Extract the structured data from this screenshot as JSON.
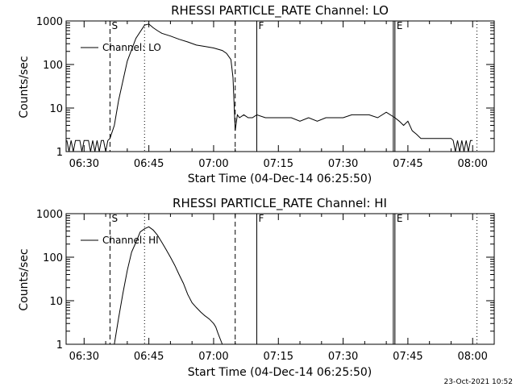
{
  "chart_data": [
    {
      "type": "line",
      "title": "RHESSI PARTICLE_RATE Channel: LO",
      "xlabel": "Start Time (04-Dec-14 06:25:50)",
      "ylabel": "Counts/sec",
      "yscale": "log",
      "ylim": [
        1,
        1000
      ],
      "xlim": [
        "06:25:50",
        "08:05:00"
      ],
      "x_ticks": [
        "06:30",
        "06:45",
        "07:00",
        "07:15",
        "07:30",
        "07:45",
        "08:00"
      ],
      "y_ticks": [
        "1",
        "10",
        "100",
        "1000"
      ],
      "legend": {
        "entries": [
          "Channel: LO"
        ],
        "placement": "top-left"
      },
      "markers": [
        {
          "label": "S",
          "time": "06:36:00",
          "style": "dashed"
        },
        {
          "label": "",
          "time": "06:44:00",
          "style": "dotted"
        },
        {
          "label": "",
          "time": "07:05:00",
          "style": "dashed"
        },
        {
          "label": "F",
          "time": "07:10:00",
          "style": "solid"
        },
        {
          "label": "E",
          "time": "07:42:00",
          "style": "solid"
        },
        {
          "label": "",
          "time": "08:01:00",
          "style": "dotted"
        }
      ],
      "series": [
        {
          "name": "Channel: LO",
          "x": [
            "06:26:00",
            "06:26:30",
            "06:27:00",
            "06:27:30",
            "06:28:00",
            "06:28:30",
            "06:29:00",
            "06:29:30",
            "06:30:00",
            "06:30:30",
            "06:31:00",
            "06:31:30",
            "06:32:00",
            "06:32:30",
            "06:33:00",
            "06:33:30",
            "06:34:00",
            "06:34:30",
            "06:35:00",
            "06:35:30",
            "06:36:00",
            "06:37:00",
            "06:38:00",
            "06:40:00",
            "06:42:00",
            "06:44:00",
            "06:45:00",
            "06:46:00",
            "06:47:00",
            "06:48:00",
            "06:50:00",
            "06:52:00",
            "06:54:00",
            "06:56:00",
            "06:58:00",
            "07:00:00",
            "07:02:00",
            "07:03:00",
            "07:04:00",
            "07:04:30",
            "07:05:00",
            "07:05:30",
            "07:06:00",
            "07:07:00",
            "07:08:00",
            "07:09:00",
            "07:10:00",
            "07:12:00",
            "07:14:00",
            "07:16:00",
            "07:18:00",
            "07:20:00",
            "07:22:00",
            "07:24:00",
            "07:26:00",
            "07:28:00",
            "07:30:00",
            "07:32:00",
            "07:34:00",
            "07:36:00",
            "07:38:00",
            "07:40:00",
            "07:42:00",
            "07:43:00",
            "07:44:00",
            "07:45:00",
            "07:46:00",
            "07:47:00",
            "07:48:00",
            "07:50:00",
            "07:52:00",
            "07:54:00",
            "07:55:00",
            "07:55:30",
            "07:56:00",
            "07:56:30",
            "07:57:00",
            "07:57:30",
            "07:58:00",
            "07:58:30",
            "07:59:00",
            "07:59:30",
            "08:00:00"
          ],
          "values": [
            1.8,
            1,
            1.8,
            1,
            1.8,
            1.8,
            1.8,
            1,
            1.8,
            1.8,
            1.8,
            1,
            1.8,
            1,
            1.8,
            1,
            1.8,
            1.8,
            1,
            1.8,
            2,
            4,
            15,
            120,
            400,
            800,
            850,
            700,
            600,
            520,
            450,
            380,
            330,
            280,
            260,
            240,
            210,
            180,
            130,
            50,
            3,
            7,
            6,
            7,
            6,
            6,
            7,
            6,
            6,
            6,
            6,
            5,
            6,
            5,
            6,
            6,
            6,
            7,
            7,
            7,
            6,
            8,
            6,
            5,
            4,
            5,
            3,
            2.5,
            2,
            2,
            2,
            2,
            2,
            1.8,
            1,
            1.8,
            1,
            1.8,
            1,
            1.8,
            1,
            1.8,
            1.8
          ]
        }
      ]
    },
    {
      "type": "line",
      "title": "RHESSI PARTICLE_RATE Channel: HI",
      "xlabel": "Start Time (04-Dec-14 06:25:50)",
      "ylabel": "Counts/sec",
      "yscale": "log",
      "ylim": [
        1,
        1000
      ],
      "xlim": [
        "06:25:50",
        "08:05:00"
      ],
      "x_ticks": [
        "06:30",
        "06:45",
        "07:00",
        "07:15",
        "07:30",
        "07:45",
        "08:00"
      ],
      "y_ticks": [
        "1",
        "10",
        "100",
        "1000"
      ],
      "legend": {
        "entries": [
          "Channel: HI"
        ],
        "placement": "top-left"
      },
      "markers": [
        {
          "label": "S",
          "time": "06:36:00",
          "style": "dashed"
        },
        {
          "label": "",
          "time": "06:44:00",
          "style": "dotted"
        },
        {
          "label": "",
          "time": "07:05:00",
          "style": "dashed"
        },
        {
          "label": "F",
          "time": "07:10:00",
          "style": "solid"
        },
        {
          "label": "E",
          "time": "07:42:00",
          "style": "solid"
        },
        {
          "label": "",
          "time": "08:01:00",
          "style": "dotted"
        }
      ],
      "series": [
        {
          "name": "Channel: HI",
          "x": [
            "06:37:00",
            "06:38:00",
            "06:39:00",
            "06:40:00",
            "06:41:00",
            "06:42:00",
            "06:43:00",
            "06:44:00",
            "06:45:00",
            "06:46:00",
            "06:47:00",
            "06:48:00",
            "06:49:00",
            "06:50:00",
            "06:51:00",
            "06:52:00",
            "06:53:00",
            "06:54:00",
            "06:55:00",
            "06:56:00",
            "06:57:00",
            "06:58:00",
            "06:59:00",
            "07:00:00",
            "07:00:30",
            "07:01:00",
            "07:02:00"
          ],
          "values": [
            1,
            4,
            15,
            50,
            130,
            220,
            380,
            450,
            500,
            420,
            320,
            220,
            150,
            100,
            65,
            40,
            25,
            14,
            9,
            7,
            5.5,
            4.5,
            3.8,
            3,
            2.5,
            1.8,
            1
          ]
        }
      ]
    }
  ],
  "footer": {
    "timestamp": "23-Oct-2021 10:52"
  }
}
